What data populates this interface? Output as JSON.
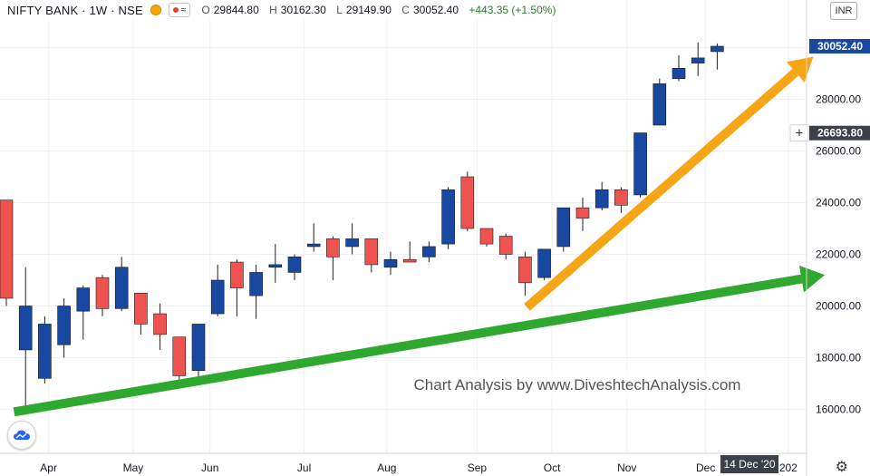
{
  "legend": {
    "symbol": "NIFTY BANK · 1W · NSE",
    "pill_label": "≈",
    "open_label": "O",
    "open": "29844.80",
    "high_label": "H",
    "high": "30162.30",
    "low_label": "L",
    "low": "29149.90",
    "close_label": "C",
    "close": "30052.40",
    "change": "+443.35 (+1.50%)"
  },
  "currency": "INR",
  "watermark": "Chart Analysis by www.DiveshtechAnalysis.com",
  "price_badges": {
    "last": "30052.40",
    "crosshair": "26693.80"
  },
  "crosshair_symbol": "+",
  "date_badge": "14 Dec '20",
  "colors": {
    "up": "#1848a0",
    "down": "#ef5350",
    "green_arrow": "#2ea82e",
    "orange_arrow": "#f6a515",
    "badge_last": "#1848a0",
    "badge_cross": "#3c4049"
  },
  "chart_data": {
    "type": "candlestick",
    "timeframe": "weekly",
    "ylim": [
      15000,
      33500
    ],
    "y_ticks": [
      16000,
      18000,
      20000,
      22000,
      24000,
      26000,
      28000,
      30000
    ],
    "y_tick_labels": [
      "16000.00",
      "18000.00",
      "20000.00",
      "22000.00",
      "24000.00",
      "26000.00",
      "28000.00",
      "30000.00"
    ],
    "x_ticks": [
      {
        "label": "Apr",
        "index": 2.2
      },
      {
        "label": "May",
        "index": 6.6
      },
      {
        "label": "Jun",
        "index": 10.6
      },
      {
        "label": "Jul",
        "index": 15.5
      },
      {
        "label": "Aug",
        "index": 19.8
      },
      {
        "label": "Sep",
        "index": 24.5
      },
      {
        "label": "Oct",
        "index": 28.4
      },
      {
        "label": "Nov",
        "index": 32.3
      },
      {
        "label": "Dec",
        "index": 36.4
      },
      {
        "label": "202",
        "index": 40.7
      }
    ],
    "candles": [
      {
        "o": 24100,
        "h": 24100,
        "l": 20000,
        "c": 20300
      },
      {
        "o": 18300,
        "h": 21500,
        "l": 16100,
        "c": 20000
      },
      {
        "o": 17200,
        "h": 19600,
        "l": 17000,
        "c": 19300
      },
      {
        "o": 18500,
        "h": 20300,
        "l": 18000,
        "c": 20000
      },
      {
        "o": 19800,
        "h": 20800,
        "l": 18700,
        "c": 20700
      },
      {
        "o": 21100,
        "h": 21200,
        "l": 19600,
        "c": 19900
      },
      {
        "o": 19900,
        "h": 21900,
        "l": 19800,
        "c": 21500
      },
      {
        "o": 20500,
        "h": 20500,
        "l": 18900,
        "c": 19300
      },
      {
        "o": 19700,
        "h": 20100,
        "l": 18300,
        "c": 18900
      },
      {
        "o": 18800,
        "h": 18800,
        "l": 17100,
        "c": 17300
      },
      {
        "o": 17500,
        "h": 19300,
        "l": 17200,
        "c": 19300
      },
      {
        "o": 19700,
        "h": 21600,
        "l": 19600,
        "c": 21000
      },
      {
        "o": 21700,
        "h": 21800,
        "l": 19600,
        "c": 20700
      },
      {
        "o": 20400,
        "h": 21600,
        "l": 19500,
        "c": 21300
      },
      {
        "o": 21500,
        "h": 22400,
        "l": 20900,
        "c": 21600
      },
      {
        "o": 21300,
        "h": 22000,
        "l": 21000,
        "c": 21900
      },
      {
        "o": 22300,
        "h": 23200,
        "l": 22100,
        "c": 22400
      },
      {
        "o": 22600,
        "h": 22700,
        "l": 21000,
        "c": 21900
      },
      {
        "o": 22300,
        "h": 23200,
        "l": 22000,
        "c": 22600
      },
      {
        "o": 22600,
        "h": 22600,
        "l": 21300,
        "c": 21600
      },
      {
        "o": 21500,
        "h": 22100,
        "l": 21200,
        "c": 21800
      },
      {
        "o": 21800,
        "h": 22500,
        "l": 21700,
        "c": 21700
      },
      {
        "o": 21900,
        "h": 22500,
        "l": 21700,
        "c": 22300
      },
      {
        "o": 22400,
        "h": 24600,
        "l": 22200,
        "c": 24500
      },
      {
        "o": 25000,
        "h": 25200,
        "l": 22900,
        "c": 23000
      },
      {
        "o": 23000,
        "h": 23000,
        "l": 22300,
        "c": 22400
      },
      {
        "o": 22700,
        "h": 22800,
        "l": 21800,
        "c": 22000
      },
      {
        "o": 21900,
        "h": 22100,
        "l": 20400,
        "c": 20900
      },
      {
        "o": 21100,
        "h": 22200,
        "l": 21000,
        "c": 22200
      },
      {
        "o": 22300,
        "h": 23800,
        "l": 22100,
        "c": 23800
      },
      {
        "o": 23800,
        "h": 24200,
        "l": 22900,
        "c": 23400
      },
      {
        "o": 23800,
        "h": 24800,
        "l": 23700,
        "c": 24500
      },
      {
        "o": 24500,
        "h": 24600,
        "l": 23600,
        "c": 23900
      },
      {
        "o": 24300,
        "h": 26700,
        "l": 24200,
        "c": 26700
      },
      {
        "o": 27000,
        "h": 28800,
        "l": 27000,
        "c": 28600
      },
      {
        "o": 28800,
        "h": 29700,
        "l": 28700,
        "c": 29200
      },
      {
        "o": 29400,
        "h": 30200,
        "l": 28900,
        "c": 29600
      },
      {
        "o": 29844.8,
        "h": 30162.3,
        "l": 29149.9,
        "c": 30052.4
      }
    ],
    "annotations": [
      {
        "type": "arrow",
        "color": "green",
        "from": {
          "index": 0.4,
          "price": 15900
        },
        "to": {
          "index": 42.6,
          "price": 21200
        }
      },
      {
        "type": "arrow",
        "color": "orange",
        "from": {
          "index": 27.1,
          "price": 19950
        },
        "to": {
          "index": 42.0,
          "price": 29650
        }
      }
    ]
  }
}
